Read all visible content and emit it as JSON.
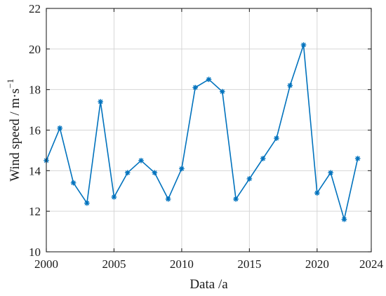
{
  "chart_data": {
    "type": "line",
    "xlabel": "Data /a",
    "ylabel_main": "Wind speed  / m·s",
    "ylabel_sup": "−1",
    "xlim": [
      2000,
      2024
    ],
    "ylim": [
      10,
      22
    ],
    "xticks": [
      2000,
      2005,
      2010,
      2015,
      2020,
      2024
    ],
    "yticks": [
      10,
      12,
      14,
      16,
      18,
      20,
      22
    ],
    "xtick_labels": [
      "2000",
      "2005",
      "2010",
      "2015",
      "2020",
      "2024"
    ],
    "ytick_labels": [
      "10",
      "12",
      "14",
      "16",
      "18",
      "20",
      "22"
    ],
    "grid": true,
    "marker": "asterisk",
    "color": "#0072BD",
    "series": [
      {
        "x": [
          2000,
          2001,
          2002,
          2003,
          2004,
          2005,
          2006,
          2007,
          2008,
          2009,
          2010,
          2011,
          2012,
          2013,
          2014,
          2015,
          2016,
          2017,
          2018,
          2019,
          2020,
          2021,
          2022,
          2023
        ],
        "values": [
          14.5,
          16.1,
          13.4,
          12.4,
          17.4,
          12.7,
          13.9,
          14.5,
          13.9,
          12.6,
          14.1,
          18.1,
          18.5,
          17.9,
          12.6,
          13.6,
          14.6,
          15.6,
          18.2,
          20.2,
          12.9,
          13.9,
          11.6,
          14.6
        ]
      }
    ]
  }
}
